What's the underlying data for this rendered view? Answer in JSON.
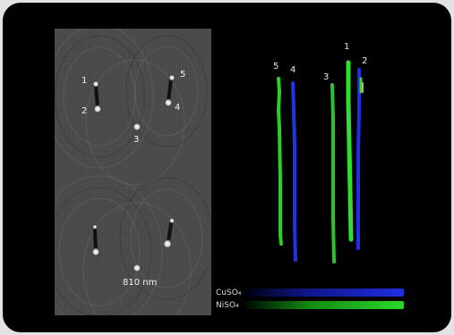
{
  "micrograph": {
    "particle_labels": [
      "1",
      "2",
      "3",
      "4",
      "5"
    ],
    "scale_label": "810 nm"
  },
  "tracks": {
    "labels": [
      "5",
      "4",
      "3",
      "1",
      "2"
    ]
  },
  "legend": {
    "items": [
      {
        "label": "CuSO₄",
        "color": "#1f2fe0"
      },
      {
        "label": "NiSO₄",
        "color": "#2cd72c"
      }
    ]
  }
}
